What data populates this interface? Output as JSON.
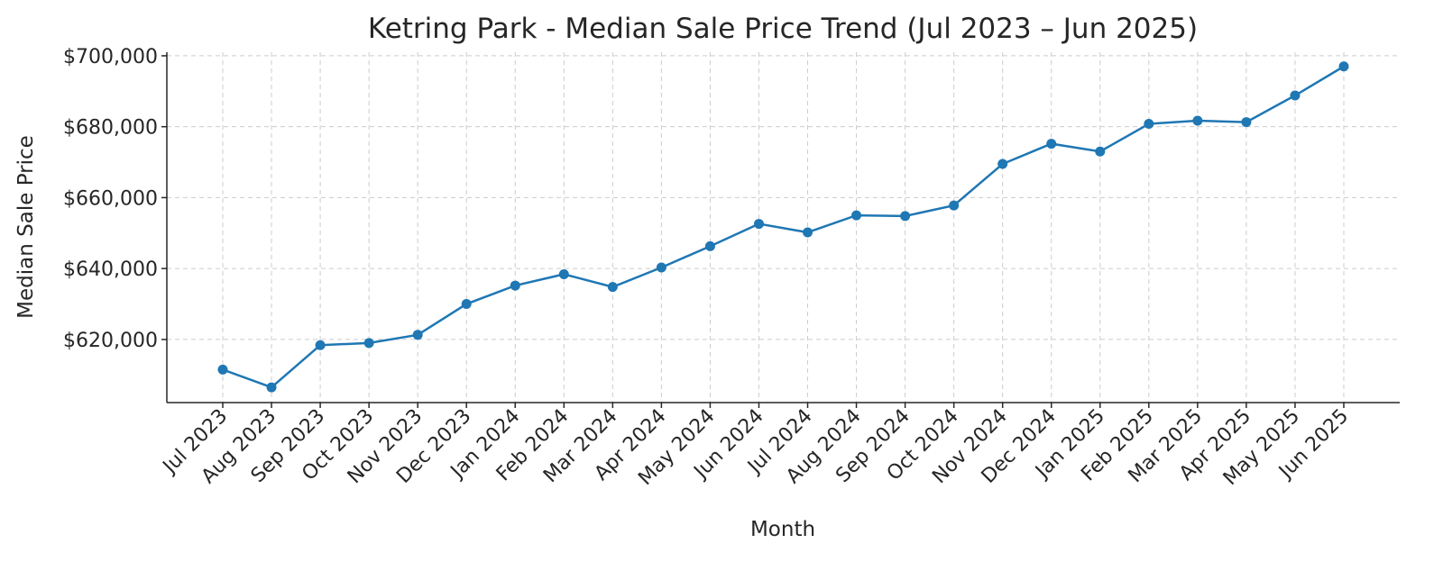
{
  "chart_data": {
    "type": "line",
    "title": "Ketring Park - Median Sale Price Trend (Jul 2023 – Jun 2025)",
    "xlabel": "Month",
    "ylabel": "Median Sale Price",
    "categories": [
      "Jul 2023",
      "Aug 2023",
      "Sep 2023",
      "Oct 2023",
      "Nov 2023",
      "Dec 2023",
      "Jan 2024",
      "Feb 2024",
      "Mar 2024",
      "Apr 2024",
      "May 2024",
      "Jun 2024",
      "Jul 2024",
      "Aug 2024",
      "Sep 2024",
      "Oct 2024",
      "Nov 2024",
      "Dec 2024",
      "Jan 2025",
      "Feb 2025",
      "Mar 2025",
      "Apr 2025",
      "May 2025",
      "Jun 2025"
    ],
    "series": [
      {
        "name": "Median Sale Price",
        "color": "#1f77b4",
        "values": [
          611500,
          606500,
          618400,
          619000,
          621300,
          630000,
          635200,
          638400,
          634800,
          640300,
          646300,
          652600,
          650200,
          655000,
          654800,
          657800,
          669500,
          675200,
          673000,
          680800,
          681700,
          681300,
          688800,
          697000
        ]
      }
    ],
    "yticks": [
      620000,
      640000,
      660000,
      680000,
      700000
    ],
    "ytick_labels": [
      "$620,000",
      "$640,000",
      "$660,000",
      "$680,000",
      "$700,000"
    ],
    "ylim": [
      602200,
      701000
    ],
    "grid": true,
    "legend": "none"
  }
}
